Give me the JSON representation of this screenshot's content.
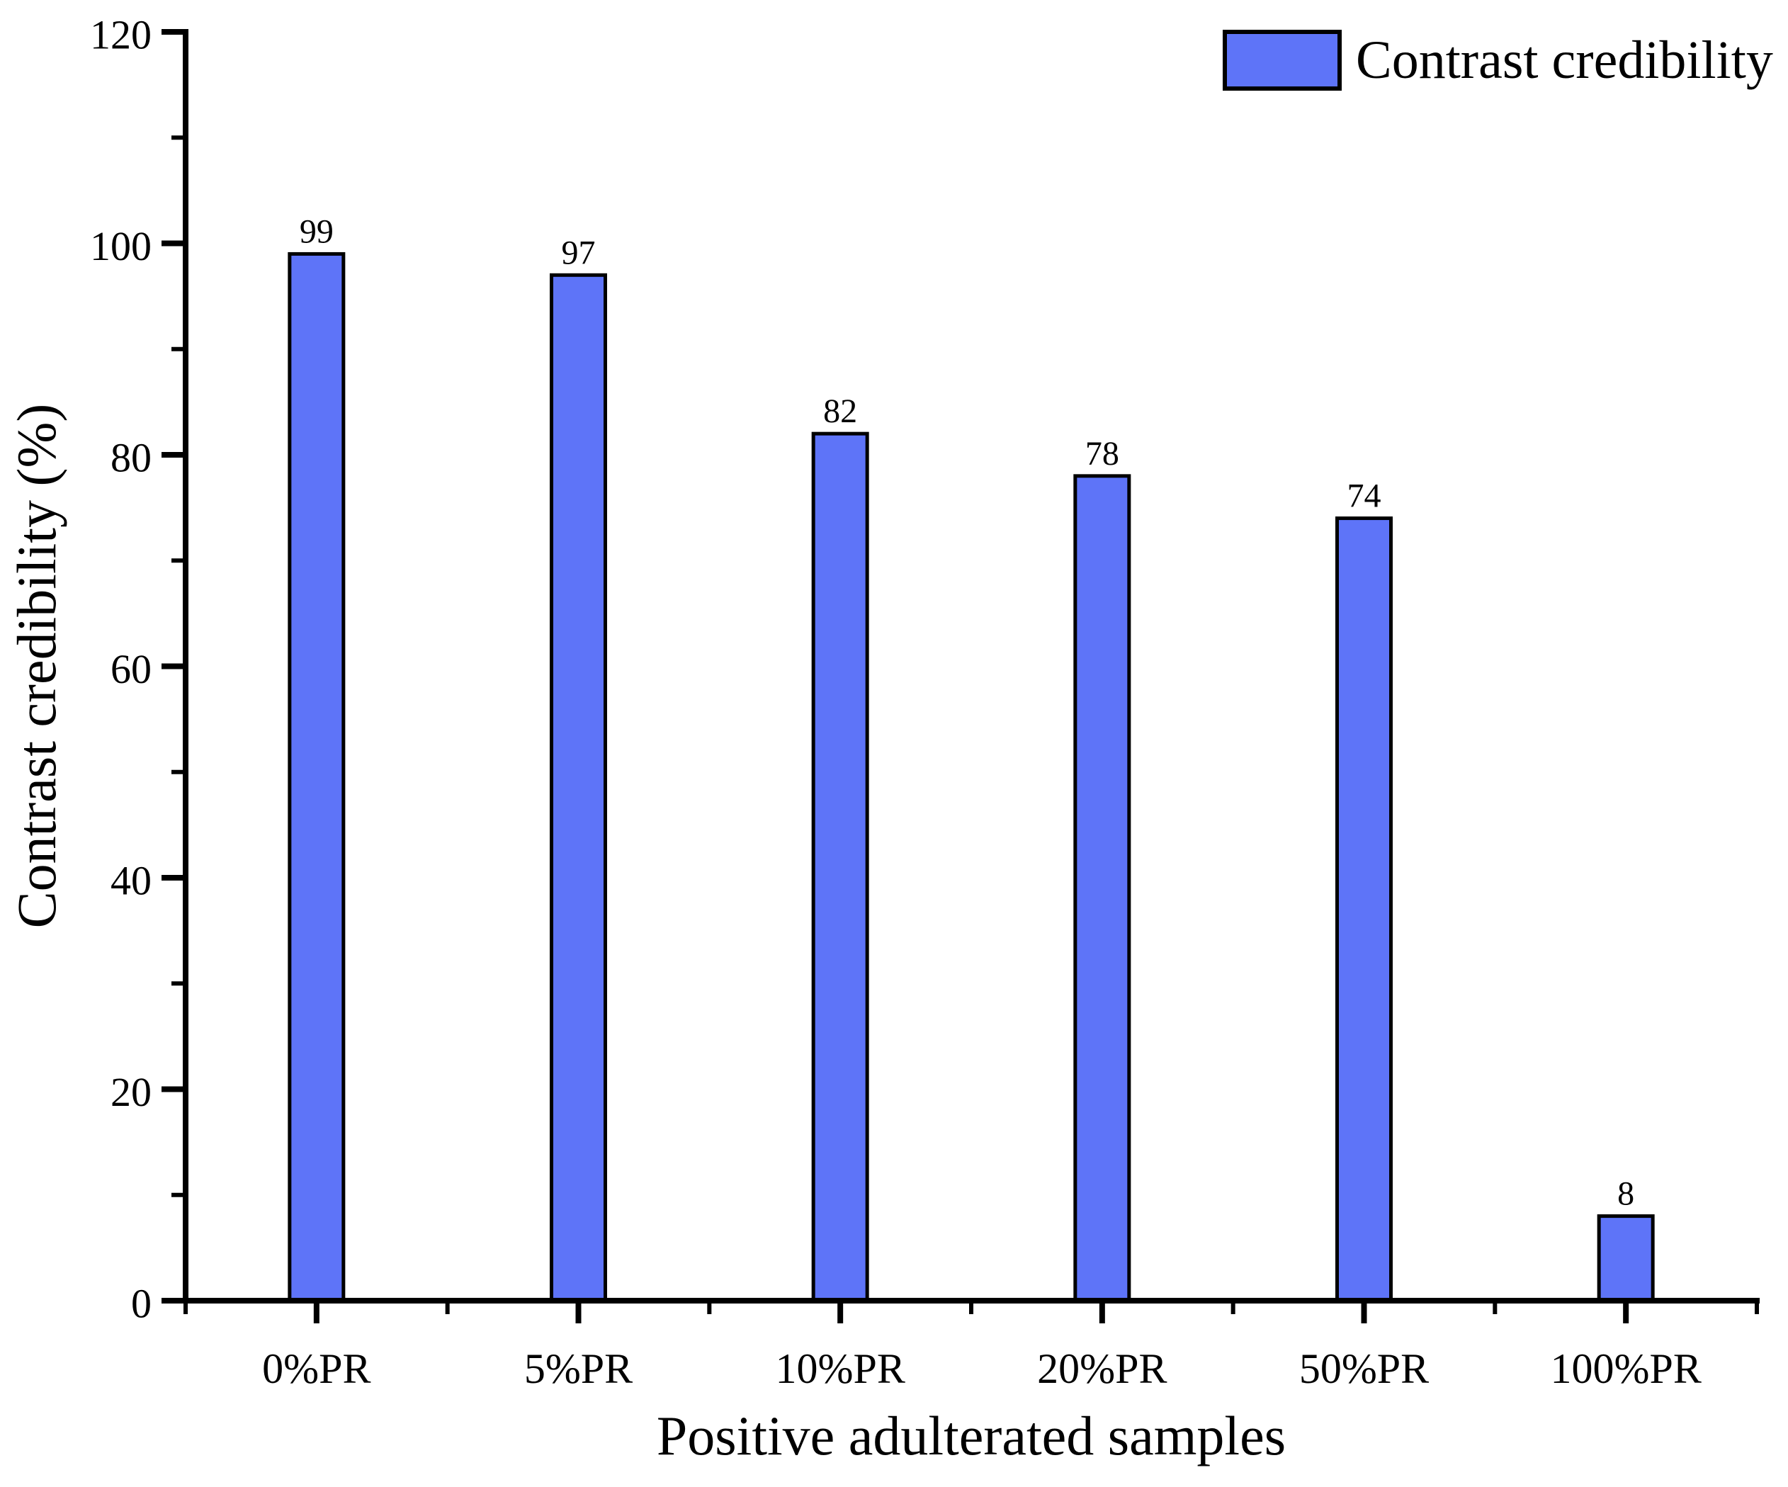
{
  "chart_data": {
    "type": "bar",
    "categories": [
      "0%PR",
      "5%PR",
      "10%PR",
      "20%PR",
      "50%PR",
      "100%PR"
    ],
    "values": [
      99,
      97,
      82,
      78,
      74,
      8
    ],
    "value_labels_shown": true,
    "xlabel": "Positive adulterated samples",
    "ylabel": "Contrast credibility (%)",
    "legend": [
      "Contrast credibility"
    ],
    "legend_position": "top-right",
    "ylim": [
      0,
      120
    ],
    "ytick_major_step": 20,
    "ytick_minor_step": 10,
    "ytick_labels": [
      "0",
      "20",
      "40",
      "60",
      "80",
      "100",
      "120"
    ],
    "grid": false,
    "colors": {
      "bar_fill": "#5E74F8",
      "bar_border": "#000000",
      "axis": "#000000",
      "text": "#000000",
      "background": "#FFFFFF"
    }
  }
}
